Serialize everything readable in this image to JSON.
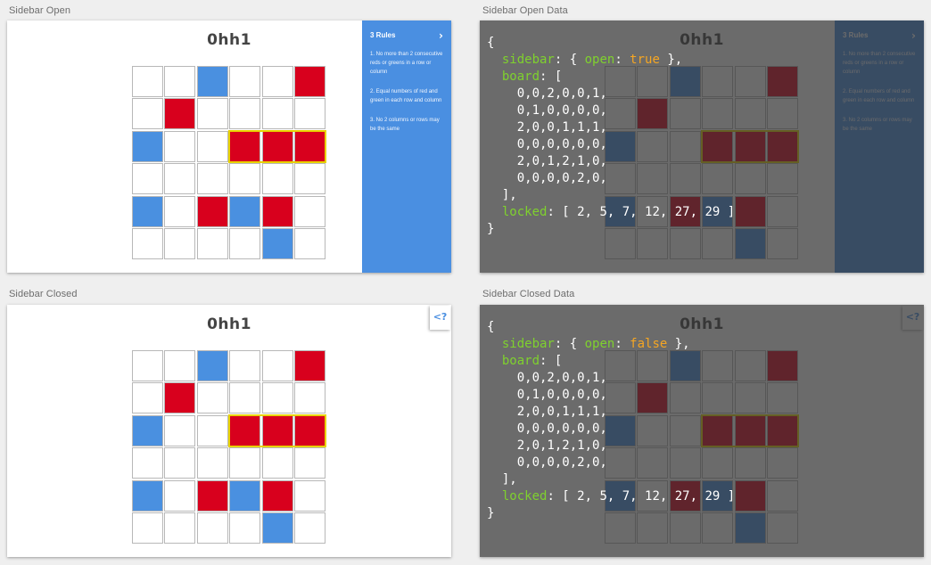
{
  "captions": {
    "open": "Sidebar Open",
    "open_data": "Sidebar Open Data",
    "closed": "Sidebar Closed",
    "closed_data": "Sidebar Closed Data"
  },
  "game_title": "0hh1",
  "colors": {
    "red": "#d8001d",
    "blue": "#4a90e0",
    "sidebar": "#4a8fe1",
    "highlight": "#e8d200"
  },
  "sidebar": {
    "title": "3 Rules",
    "chevron_icon": "chevron-right-icon",
    "rules": [
      "1. No more than 2 consecutive reds or greens in a row or column",
      "2. Equal numbers of red and green in each row and column",
      "3. No 2 columns or rows may be the same"
    ]
  },
  "help_tab": {
    "label": "<?",
    "icon": "help-chevron-icon"
  },
  "boards": {
    "open": [
      [
        0,
        0,
        2,
        0,
        0,
        1
      ],
      [
        0,
        1,
        0,
        0,
        0,
        0
      ],
      [
        2,
        0,
        0,
        1,
        1,
        1
      ],
      [
        0,
        0,
        0,
        0,
        0,
        0
      ],
      [
        2,
        0,
        1,
        2,
        1,
        0
      ],
      [
        0,
        0,
        0,
        0,
        2,
        0
      ]
    ],
    "closed": [
      [
        0,
        0,
        2,
        0,
        0,
        1
      ],
      [
        0,
        1,
        0,
        0,
        0,
        0
      ],
      [
        2,
        0,
        0,
        1,
        1,
        1
      ],
      [
        0,
        0,
        0,
        0,
        0,
        0
      ],
      [
        2,
        0,
        1,
        2,
        1,
        0
      ],
      [
        0,
        0,
        0,
        0,
        2,
        0
      ]
    ]
  },
  "highlight": {
    "row": 2,
    "col_start": 3,
    "col_end": 5
  },
  "code_open": {
    "open_brace": "{",
    "sidebar_key": "sidebar",
    "sidebar_pre": ": { ",
    "open_key": "open",
    "colon": ": ",
    "open_value": "true",
    "sidebar_post": " },",
    "board_key": "board",
    "board_post": ": [",
    "rows": [
      "0,0,2,0,0,1,",
      "0,1,0,0,0,0,",
      "2,0,0,1,1,1,",
      "0,0,0,0,0,0,",
      "2,0,1,2,1,0,",
      "0,0,0,0,2,0,"
    ],
    "board_close": "],",
    "locked_key": "locked",
    "locked_value": ": [ 2, 5, 7, 12, 27, 29 ]",
    "close_brace": "}"
  },
  "code_closed": {
    "open_brace": "{",
    "sidebar_key": "sidebar",
    "sidebar_pre": ": { ",
    "open_key": "open",
    "colon": ": ",
    "open_value": "false",
    "sidebar_post": " },",
    "board_key": "board",
    "board_post": ": [",
    "rows": [
      "0,0,2,0,0,1,",
      "0,1,0,0,0,0,",
      "2,0,0,1,1,1,",
      "0,0,0,0,0,0,",
      "2,0,1,2,1,0,",
      "0,0,0,0,2,0,"
    ],
    "board_close": "],",
    "locked_key": "locked",
    "locked_value": ": [ 2, 5, 7, 12, 27, 29 ]",
    "close_brace": "}"
  }
}
